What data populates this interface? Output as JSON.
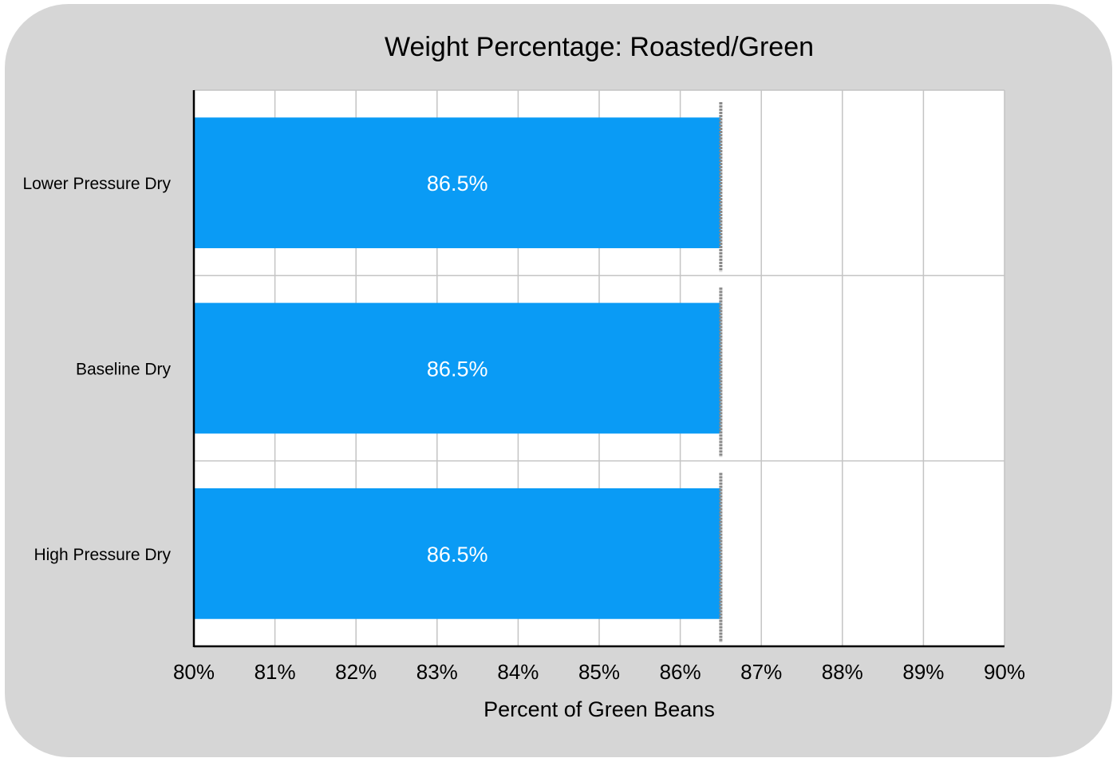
{
  "chart_data": {
    "type": "bar",
    "orientation": "horizontal",
    "title": "Weight Percentage: Roasted/Green",
    "xlabel": "Percent of Green Beans",
    "ylabel": "",
    "categories": [
      "Lower Pressure Dry",
      "Baseline Dry",
      "High Pressure Dry"
    ],
    "values": [
      86.5,
      86.5,
      86.5
    ],
    "data_labels": [
      "86.5%",
      "86.5%",
      "86.5%"
    ],
    "xlim": [
      80,
      90
    ],
    "x_ticks": [
      "80%",
      "81%",
      "82%",
      "83%",
      "84%",
      "85%",
      "86%",
      "87%",
      "88%",
      "89%",
      "90%"
    ],
    "grid": true,
    "legend": "none",
    "colors": {
      "bar": "#0a9bf5",
      "background": "#d6d6d6",
      "plot_background": "#ffffff",
      "grid": "#c4c4c4",
      "error_bar": "#8a8a8a"
    }
  }
}
